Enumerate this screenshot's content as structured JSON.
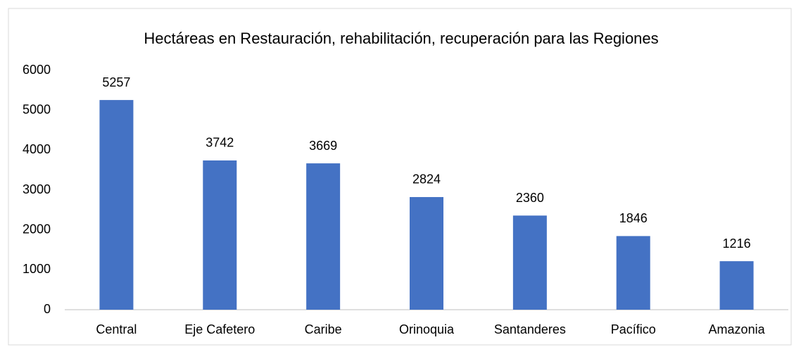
{
  "chart_data": {
    "type": "bar",
    "title": "Hectáreas en Restauración, rehabilitación, recuperación para las Regiones",
    "categories": [
      "Central",
      "Eje Cafetero",
      "Caribe",
      "Orinoquia",
      "Santanderes",
      "Pacífico",
      "Amazonia"
    ],
    "values": [
      5257,
      3742,
      3669,
      2824,
      2360,
      1846,
      1216
    ],
    "color": "#4472c4",
    "ylim": [
      0,
      6000
    ],
    "yticks": [
      0,
      1000,
      2000,
      3000,
      4000,
      5000,
      6000
    ],
    "grid": false
  }
}
